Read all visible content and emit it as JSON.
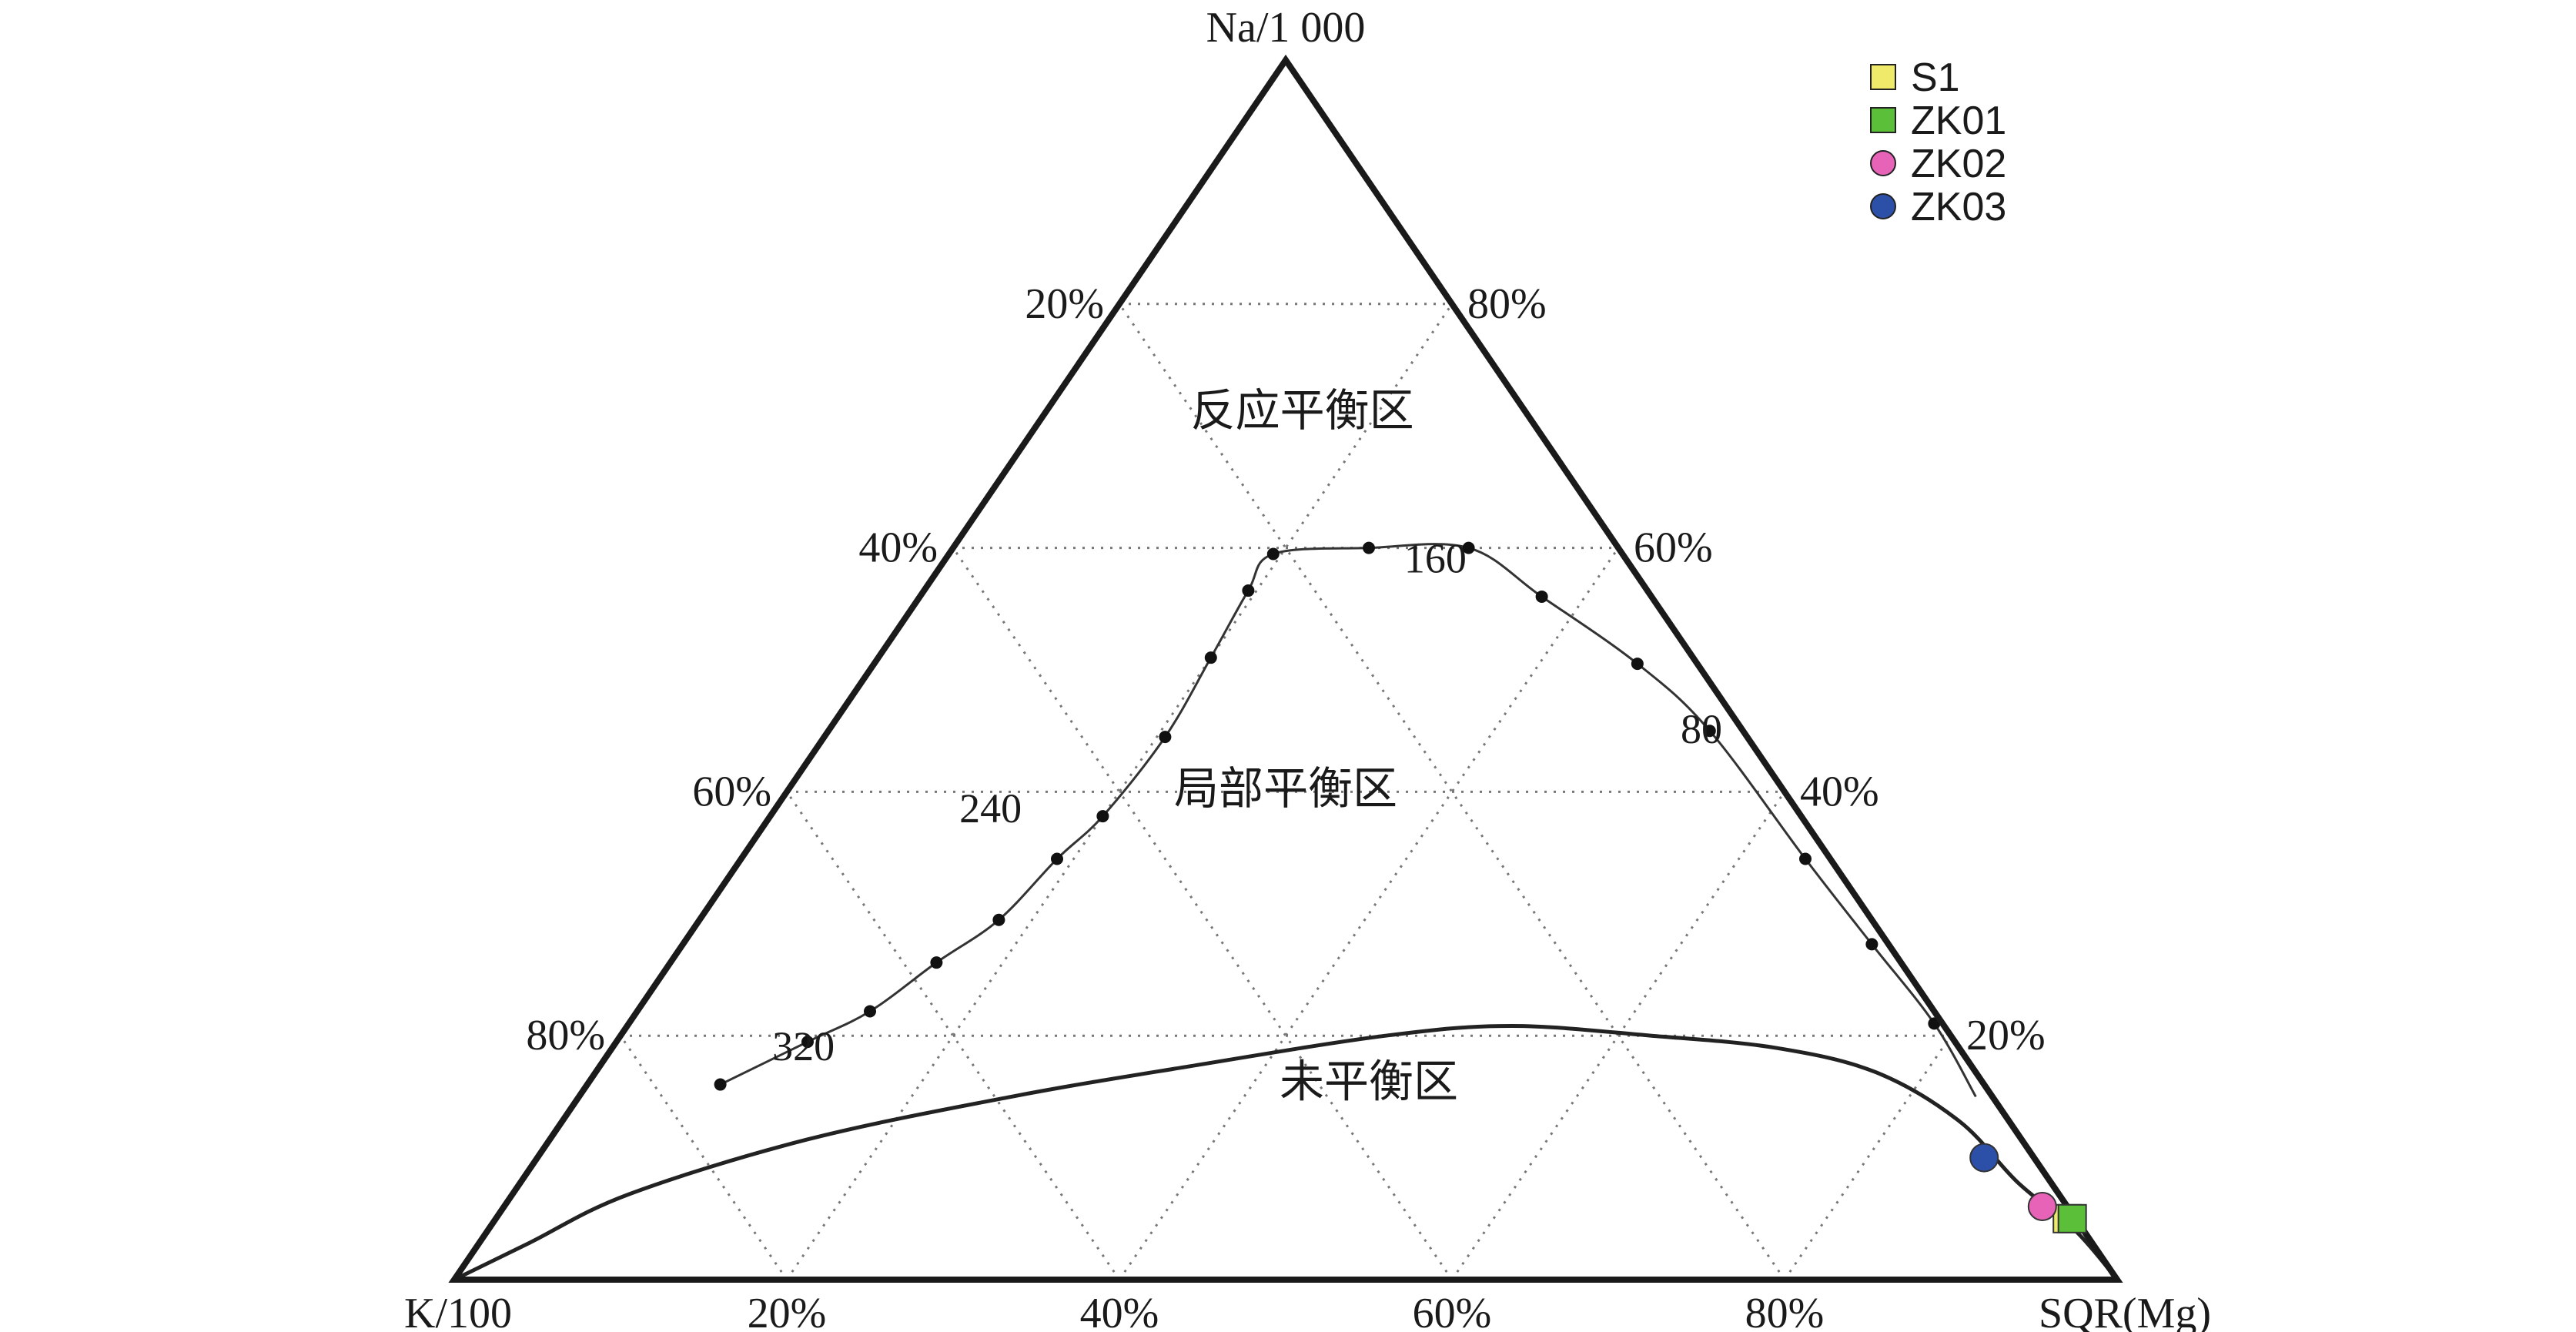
{
  "chart_data": {
    "type": "scatter",
    "subtype": "ternary",
    "title": "",
    "vertices": {
      "top": "Na/1 000",
      "left": "K/100",
      "right": "SQR(Mg)"
    },
    "ticks": {
      "left_edge": [
        "20%",
        "40%",
        "60%",
        "80%"
      ],
      "right_edge": [
        "80%",
        "60%",
        "40%",
        "20%"
      ],
      "bottom_edge": [
        "20%",
        "40%",
        "60%",
        "80%"
      ]
    },
    "regions": [
      {
        "label": "反应平衡区",
        "na": 0.7,
        "k": 0.14
      },
      {
        "label": "局部平衡区",
        "na": 0.39,
        "k": 0.305
      },
      {
        "label": "未平衡区",
        "na": 0.15,
        "k": 0.375
      }
    ],
    "full_equilibrium_line": [
      [
        0.0,
        1.0,
        0.0
      ],
      [
        0.03,
        0.94,
        0.03
      ],
      [
        0.07,
        0.86,
        0.07
      ],
      [
        0.115,
        0.73,
        0.155
      ],
      [
        0.15,
        0.59,
        0.26
      ],
      [
        0.175,
        0.47,
        0.355
      ],
      [
        0.2,
        0.34,
        0.46
      ],
      [
        0.208,
        0.26,
        0.532
      ],
      [
        0.2,
        0.18,
        0.62
      ],
      [
        0.19,
        0.11,
        0.7
      ],
      [
        0.17,
        0.06,
        0.77
      ],
      [
        0.13,
        0.03,
        0.84
      ],
      [
        0.08,
        0.02,
        0.9
      ],
      [
        0.04,
        0.005,
        0.955
      ],
      [
        0.0,
        0.0,
        1.0
      ]
    ],
    "isotherm_curve": {
      "points": [
        [
          0.16,
          0.76,
          0.08
        ],
        [
          0.195,
          0.69,
          0.115
        ],
        [
          0.22,
          0.64,
          0.14
        ],
        [
          0.26,
          0.58,
          0.16
        ],
        [
          0.295,
          0.525,
          0.18
        ],
        [
          0.345,
          0.465,
          0.19
        ],
        [
          0.38,
          0.42,
          0.2
        ],
        [
          0.445,
          0.35,
          0.205
        ],
        [
          0.51,
          0.29,
          0.2
        ],
        [
          0.565,
          0.24,
          0.195
        ],
        [
          0.595,
          0.21,
          0.195
        ],
        [
          0.6,
          0.15,
          0.25
        ],
        [
          0.6,
          0.09,
          0.31
        ],
        [
          0.56,
          0.066,
          0.374
        ],
        [
          0.505,
          0.036,
          0.459
        ],
        [
          0.45,
          0.02,
          0.53
        ],
        [
          0.345,
          0.015,
          0.64
        ],
        [
          0.275,
          0.01,
          0.715
        ],
        [
          0.21,
          0.005,
          0.785
        ]
      ],
      "tail": [
        0.15,
        0.01,
        0.84
      ],
      "temperature_labels": [
        {
          "text": "320",
          "na": 0.18,
          "k": 0.7
        },
        {
          "text": "240",
          "na": 0.375,
          "k": 0.49
        },
        {
          "text": "160",
          "na": 0.58,
          "k": 0.12
        },
        {
          "text": "80",
          "na": 0.44,
          "k": 0.03
        }
      ]
    },
    "series": [
      {
        "name": "S1",
        "marker": "square",
        "color": "#f0ea6a",
        "points": [
          [
            0.05,
            0.005,
            0.945
          ]
        ]
      },
      {
        "name": "ZK01",
        "marker": "square",
        "color": "#5bbf3a",
        "points": [
          [
            0.05,
            0.002,
            0.948
          ]
        ]
      },
      {
        "name": "ZK02",
        "marker": "circle",
        "color": "#e763b8",
        "points": [
          [
            0.06,
            0.015,
            0.925
          ]
        ]
      },
      {
        "name": "ZK03",
        "marker": "circle",
        "color": "#2c4fa8",
        "points": [
          [
            0.1,
            0.03,
            0.87
          ]
        ]
      }
    ],
    "grid": true,
    "legend": "top-right"
  }
}
